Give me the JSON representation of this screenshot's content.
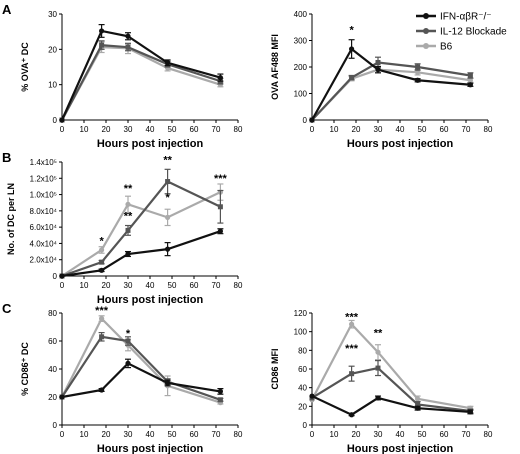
{
  "legend": [
    {
      "name": "IFN-αβR⁻/⁻",
      "color": "#111111"
    },
    {
      "name": "IL-12 Blockade",
      "color": "#555555"
    },
    {
      "name": "B6",
      "color": "#aaaaaa"
    }
  ],
  "panel_labels": [
    "A",
    "B",
    "C"
  ],
  "chart_data": [
    {
      "type": "line",
      "panel": "A",
      "title": "",
      "xlabel": "Hours post injection",
      "ylabel": "% OVA⁺ DC",
      "xlim": [
        0,
        80
      ],
      "ylim": [
        0,
        30
      ],
      "xticks": [
        0,
        10,
        20,
        30,
        40,
        50,
        60,
        70,
        80
      ],
      "yticks": [
        0,
        10,
        20,
        30
      ],
      "x": [
        0,
        18,
        30,
        48,
        72
      ],
      "series": [
        {
          "name": "IFN-αβR⁻/⁻",
          "values": [
            0,
            25.2,
            23.7,
            16.2,
            12.0
          ],
          "errors": [
            0,
            1.8,
            1.0,
            0.8,
            1.0
          ]
        },
        {
          "name": "IL-12 Blockade",
          "values": [
            0,
            21.2,
            20.6,
            15.8,
            11.0
          ],
          "errors": [
            0,
            1.2,
            1.0,
            0.8,
            0.8
          ]
        },
        {
          "name": "B6",
          "values": [
            0,
            20.6,
            20.3,
            14.7,
            10.0
          ],
          "errors": [
            0,
            1.5,
            1.5,
            0.8,
            0.6
          ]
        }
      ],
      "annotations": []
    },
    {
      "type": "line",
      "panel": "A",
      "title": "",
      "xlabel": "Hours post injection",
      "ylabel": "OVA AF488  MFI",
      "xlim": [
        0,
        80
      ],
      "ylim": [
        0,
        400
      ],
      "xticks": [
        0,
        10,
        20,
        30,
        40,
        50,
        60,
        70,
        80
      ],
      "yticks": [
        0,
        100,
        200,
        300,
        400
      ],
      "x": [
        0,
        18,
        30,
        48,
        72
      ],
      "series": [
        {
          "name": "IFN-αβR⁻/⁻",
          "values": [
            0,
            268,
            190,
            150,
            133
          ],
          "errors": [
            0,
            35,
            12,
            6,
            6
          ]
        },
        {
          "name": "IL-12 Blockade",
          "values": [
            0,
            160,
            217,
            200,
            168
          ],
          "errors": [
            0,
            8,
            20,
            12,
            10
          ]
        },
        {
          "name": "B6",
          "values": [
            0,
            156,
            190,
            180,
            150
          ],
          "errors": [
            0,
            8,
            12,
            10,
            8
          ]
        }
      ],
      "annotations": [
        {
          "x": 18,
          "text": "*"
        }
      ]
    },
    {
      "type": "line",
      "panel": "B",
      "title": "",
      "xlabel": "Hours post injection",
      "ylabel": "No. of DC per LN",
      "xlim": [
        0,
        80
      ],
      "ylim": [
        0,
        140000
      ],
      "xticks": [
        0,
        10,
        20,
        30,
        40,
        50,
        60,
        70,
        80
      ],
      "yticks": [
        0,
        20000,
        40000,
        60000,
        80000,
        100000,
        120000,
        140000
      ],
      "yticklabels": [
        "0",
        "2.0x10⁴",
        "4.0x10⁴",
        "6.0x10⁴",
        "8.0x10⁴",
        "1.0x10⁵",
        "1.2x10⁵",
        "1.4x10⁵"
      ],
      "x": [
        0,
        18,
        30,
        48,
        72
      ],
      "series": [
        {
          "name": "IFN-αβR⁻/⁻",
          "values": [
            0,
            7000,
            27000,
            33000,
            55000
          ],
          "errors": [
            0,
            1500,
            3000,
            8000,
            3000
          ]
        },
        {
          "name": "IL-12 Blockade",
          "values": [
            0,
            17000,
            56000,
            116000,
            85000
          ],
          "errors": [
            0,
            2000,
            6000,
            15000,
            20000
          ]
        },
        {
          "name": "B6",
          "values": [
            0,
            32000,
            88000,
            72000,
            103000
          ],
          "errors": [
            0,
            4000,
            10000,
            10000,
            10000
          ]
        }
      ],
      "annotations": [
        {
          "x": 18,
          "text": "*"
        },
        {
          "x": 30,
          "text": "**"
        },
        {
          "x": 30,
          "text": "**"
        },
        {
          "x": 48,
          "text": "**"
        },
        {
          "x": 48,
          "text": "*"
        },
        {
          "x": 72,
          "text": "***"
        }
      ]
    },
    {
      "type": "line",
      "panel": "C",
      "title": "",
      "xlabel": "Hours post injection",
      "ylabel": "% CD86⁺ DC",
      "xlim": [
        0,
        80
      ],
      "ylim": [
        0,
        80
      ],
      "xticks": [
        0,
        10,
        20,
        30,
        40,
        50,
        60,
        70,
        80
      ],
      "yticks": [
        0,
        20,
        40,
        60,
        80
      ],
      "x": [
        0,
        18,
        30,
        48,
        72
      ],
      "series": [
        {
          "name": "IFN-αβR⁻/⁻",
          "values": [
            20,
            25,
            44,
            30,
            24
          ],
          "errors": [
            0,
            1,
            3,
            2,
            2
          ]
        },
        {
          "name": "IL-12 Blockade",
          "values": [
            20,
            63,
            60,
            31,
            18
          ],
          "errors": [
            0,
            3,
            3,
            2,
            1
          ]
        },
        {
          "name": "B6",
          "values": [
            20,
            76,
            57,
            28,
            16
          ],
          "errors": [
            0,
            2,
            4,
            7,
            1
          ]
        }
      ],
      "annotations": [
        {
          "x": 18,
          "text": "***"
        },
        {
          "x": 30,
          "text": "*"
        }
      ]
    },
    {
      "type": "line",
      "panel": "C",
      "title": "",
      "xlabel": "Hours post injection",
      "ylabel": "CD86 MFI",
      "xlim": [
        0,
        80
      ],
      "ylim": [
        0,
        120
      ],
      "xticks": [
        0,
        10,
        20,
        30,
        40,
        50,
        60,
        70,
        80
      ],
      "yticks": [
        0,
        20,
        40,
        60,
        80,
        100,
        120
      ],
      "x": [
        0,
        18,
        30,
        48,
        72
      ],
      "series": [
        {
          "name": "IFN-αβR⁻/⁻",
          "values": [
            31,
            11,
            29,
            18,
            14
          ],
          "errors": [
            0,
            1,
            2,
            2,
            2
          ]
        },
        {
          "name": "IL-12 Blockade",
          "values": [
            29,
            55,
            61,
            22,
            15
          ],
          "errors": [
            0,
            8,
            8,
            3,
            2
          ]
        },
        {
          "name": "B6",
          "values": [
            27,
            108,
            78,
            28,
            18
          ],
          "errors": [
            0,
            4,
            8,
            3,
            2
          ]
        }
      ],
      "annotations": [
        {
          "x": 18,
          "text": "***"
        },
        {
          "x": 18,
          "text": "***"
        },
        {
          "x": 30,
          "text": "**"
        }
      ]
    }
  ]
}
